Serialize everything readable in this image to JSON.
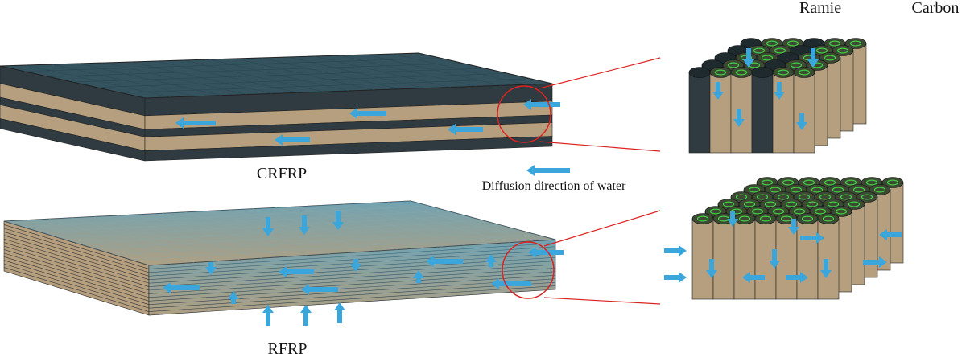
{
  "labels": {
    "ramie": "Ramie",
    "carbon": "Carbon",
    "crfrp": "CRFRP",
    "legend": "Diffusion direction of water",
    "rfrp": "RFRP"
  }
}
